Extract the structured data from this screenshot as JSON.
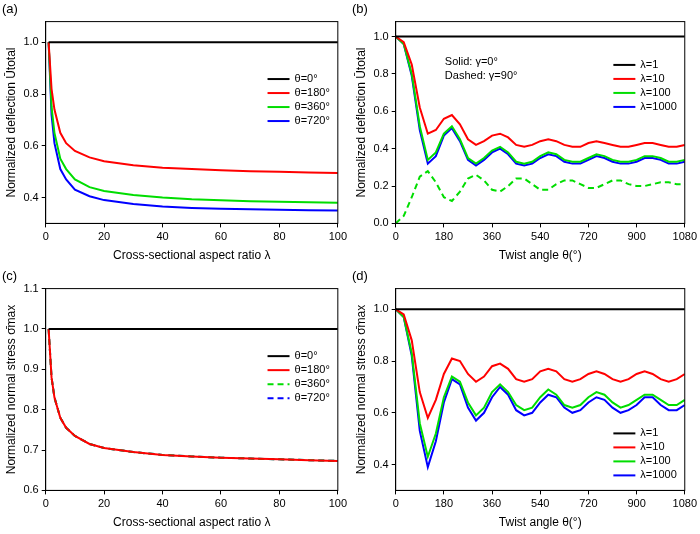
{
  "chart_data": [
    {
      "type": "line",
      "title": "(a)",
      "x_label": "Cross-sectional aspect ratio λ",
      "y_label": "Normalized deflection Ūtotal",
      "x": [
        1,
        2,
        3,
        5,
        7,
        10,
        15,
        20,
        30,
        40,
        50,
        60,
        70,
        80,
        90,
        100
      ],
      "xlim": [
        0,
        100
      ],
      "xticks": [
        0,
        20,
        40,
        60,
        80,
        100
      ],
      "ylim": [
        0.3,
        1.08
      ],
      "yticks": [
        0.4,
        0.6,
        0.8,
        {
          "value": 1,
          "label": "1.0"
        }
      ],
      "grid": false,
      "legend": "right",
      "series": [
        {
          "name": "θ=0°",
          "color": "#000000",
          "line_style": "solid",
          "values": [
            1,
            1,
            1,
            1,
            1,
            1,
            1,
            1,
            1,
            1,
            1,
            1,
            1,
            1,
            1,
            1
          ]
        },
        {
          "name": "θ=180°",
          "color": "#ff0000",
          "line_style": "solid",
          "values": [
            1,
            0.82,
            0.74,
            0.65,
            0.61,
            0.58,
            0.555,
            0.54,
            0.525,
            0.515,
            0.51,
            0.505,
            0.502,
            0.5,
            0.497,
            0.495
          ]
        },
        {
          "name": "θ=360°",
          "color": "#00dd00",
          "line_style": "solid",
          "values": [
            1,
            0.75,
            0.65,
            0.55,
            0.51,
            0.47,
            0.44,
            0.425,
            0.41,
            0.4,
            0.393,
            0.389,
            0.386,
            0.384,
            0.382,
            0.38
          ]
        },
        {
          "name": "θ=720°",
          "color": "#0000ff",
          "line_style": "solid",
          "values": [
            1,
            0.72,
            0.61,
            0.51,
            0.47,
            0.43,
            0.405,
            0.39,
            0.375,
            0.365,
            0.36,
            0.357,
            0.355,
            0.353,
            0.351,
            0.35
          ]
        }
      ]
    },
    {
      "type": "line",
      "title": "(b)",
      "x_label": "Twist angle θ(°)",
      "y_label": "Normalized deflection Ūtotal",
      "annotations": [
        "Solid: γ=0°",
        "Dashed: γ=90°"
      ],
      "x": [
        0,
        30,
        60,
        90,
        120,
        150,
        180,
        210,
        240,
        270,
        300,
        330,
        360,
        390,
        420,
        450,
        480,
        510,
        540,
        570,
        600,
        630,
        660,
        690,
        720,
        750,
        780,
        810,
        840,
        870,
        900,
        930,
        960,
        990,
        1020,
        1050,
        1080
      ],
      "xlim": [
        0,
        1080
      ],
      "xticks": [
        0,
        180,
        360,
        540,
        720,
        900,
        1080
      ],
      "ylim": [
        0,
        1.08
      ],
      "yticks": [
        {
          "value": 0,
          "label": "0.0"
        },
        0.2,
        0.4,
        0.6,
        0.8,
        {
          "value": 1,
          "label": "1.0"
        }
      ],
      "grid": false,
      "legend": "right",
      "series": [
        {
          "name": "λ=1",
          "color": "#000000",
          "line_style": "solid",
          "values": [
            1,
            1,
            1,
            1,
            1,
            1,
            1,
            1,
            1,
            1,
            1,
            1,
            1,
            1,
            1,
            1,
            1,
            1,
            1,
            1,
            1,
            1,
            1,
            1,
            1,
            1,
            1,
            1,
            1,
            1,
            1,
            1,
            1,
            1,
            1,
            1,
            1
          ]
        },
        {
          "name": "λ=10",
          "color": "#ff0000",
          "line_style": "solid",
          "values": [
            1,
            0.97,
            0.85,
            0.62,
            0.48,
            0.5,
            0.56,
            0.58,
            0.53,
            0.45,
            0.42,
            0.44,
            0.47,
            0.48,
            0.46,
            0.42,
            0.41,
            0.42,
            0.44,
            0.45,
            0.44,
            0.42,
            0.41,
            0.41,
            0.43,
            0.44,
            0.43,
            0.42,
            0.41,
            0.41,
            0.42,
            0.43,
            0.43,
            0.42,
            0.41,
            0.41,
            0.42
          ]
        },
        {
          "name": "λ=100",
          "color": "#00dd00",
          "line_style": "solid",
          "values": [
            1,
            0.96,
            0.8,
            0.52,
            0.34,
            0.38,
            0.48,
            0.52,
            0.45,
            0.35,
            0.32,
            0.35,
            0.39,
            0.41,
            0.38,
            0.33,
            0.32,
            0.33,
            0.36,
            0.38,
            0.37,
            0.34,
            0.33,
            0.33,
            0.35,
            0.37,
            0.36,
            0.34,
            0.33,
            0.33,
            0.34,
            0.36,
            0.36,
            0.35,
            0.33,
            0.33,
            0.34
          ]
        },
        {
          "name": "λ=1000",
          "color": "#0000ff",
          "line_style": "solid",
          "values": [
            1,
            0.96,
            0.79,
            0.5,
            0.32,
            0.36,
            0.47,
            0.51,
            0.44,
            0.34,
            0.31,
            0.34,
            0.38,
            0.4,
            0.37,
            0.32,
            0.31,
            0.32,
            0.35,
            0.37,
            0.36,
            0.33,
            0.32,
            0.32,
            0.34,
            0.36,
            0.35,
            0.33,
            0.32,
            0.32,
            0.33,
            0.35,
            0.35,
            0.34,
            0.32,
            0.32,
            0.33
          ]
        },
        {
          "color": "#00dd00",
          "line_style": "dashed",
          "values": [
            0,
            0.04,
            0.14,
            0.25,
            0.28,
            0.22,
            0.14,
            0.12,
            0.17,
            0.24,
            0.26,
            0.23,
            0.18,
            0.17,
            0.2,
            0.24,
            0.24,
            0.21,
            0.18,
            0.18,
            0.21,
            0.23,
            0.23,
            0.21,
            0.19,
            0.19,
            0.21,
            0.23,
            0.23,
            0.21,
            0.2,
            0.2,
            0.21,
            0.22,
            0.22,
            0.21,
            0.21
          ]
        }
      ]
    },
    {
      "type": "line",
      "title": "(c)",
      "x_label": "Cross-sectional aspect ratio λ",
      "y_label": "Normalized normal stress σ̄max",
      "x": [
        1,
        2,
        3,
        5,
        7,
        10,
        15,
        20,
        30,
        40,
        50,
        60,
        70,
        80,
        90,
        100
      ],
      "xlim": [
        0,
        100
      ],
      "xticks": [
        0,
        20,
        40,
        60,
        80,
        100
      ],
      "ylim": [
        0.6,
        1.1
      ],
      "yticks": [
        0.6,
        0.7,
        0.8,
        0.9,
        {
          "value": 1,
          "label": "1.0"
        },
        1.1
      ],
      "grid": false,
      "legend": "right",
      "series": [
        {
          "name": "θ=0°",
          "color": "#000000",
          "line_style": "solid",
          "values": [
            1,
            1,
            1,
            1,
            1,
            1,
            1,
            1,
            1,
            1,
            1,
            1,
            1,
            1,
            1,
            1
          ]
        },
        {
          "name": "θ=180°",
          "color": "#ff0000",
          "line_style": "solid",
          "values": [
            1,
            0.88,
            0.83,
            0.78,
            0.755,
            0.735,
            0.715,
            0.705,
            0.695,
            0.688,
            0.684,
            0.681,
            0.679,
            0.677,
            0.675,
            0.673
          ]
        },
        {
          "name": "θ=360°",
          "color": "#00dd00",
          "line_style": "dashed",
          "values": [
            1,
            0.88,
            0.83,
            0.78,
            0.755,
            0.735,
            0.715,
            0.705,
            0.695,
            0.688,
            0.684,
            0.681,
            0.679,
            0.677,
            0.675,
            0.673
          ]
        },
        {
          "name": "θ=720°",
          "color": "#0000ff",
          "line_style": "dashed",
          "values": [
            1,
            0.88,
            0.83,
            0.78,
            0.755,
            0.735,
            0.715,
            0.705,
            0.695,
            0.688,
            0.684,
            0.681,
            0.679,
            0.677,
            0.675,
            0.673
          ]
        }
      ]
    },
    {
      "type": "line",
      "title": "(d)",
      "x_label": "Twist angle θ(°)",
      "y_label": "Normalized normal stress σ̄max",
      "x": [
        0,
        30,
        60,
        90,
        120,
        150,
        180,
        210,
        240,
        270,
        300,
        330,
        360,
        390,
        420,
        450,
        480,
        510,
        540,
        570,
        600,
        630,
        660,
        690,
        720,
        750,
        780,
        810,
        840,
        870,
        900,
        930,
        960,
        990,
        1020,
        1050,
        1080
      ],
      "xlim": [
        0,
        1080
      ],
      "xticks": [
        0,
        180,
        360,
        540,
        720,
        900,
        1080
      ],
      "ylim": [
        0.3,
        1.08
      ],
      "yticks": [
        0.4,
        0.6,
        0.8,
        {
          "value": 1,
          "label": "1.0"
        }
      ],
      "grid": false,
      "legend": "lower right",
      "series": [
        {
          "name": "λ=1",
          "color": "#000000",
          "line_style": "solid",
          "values": [
            1,
            1,
            1,
            1,
            1,
            1,
            1,
            1,
            1,
            1,
            1,
            1,
            1,
            1,
            1,
            1,
            1,
            1,
            1,
            1,
            1,
            1,
            1,
            1,
            1,
            1,
            1,
            1,
            1,
            1,
            1,
            1,
            1,
            1,
            1,
            1,
            1
          ]
        },
        {
          "name": "λ=10",
          "color": "#ff0000",
          "line_style": "solid",
          "values": [
            1,
            0.98,
            0.88,
            0.68,
            0.58,
            0.65,
            0.75,
            0.81,
            0.8,
            0.75,
            0.72,
            0.74,
            0.78,
            0.79,
            0.77,
            0.73,
            0.72,
            0.73,
            0.76,
            0.77,
            0.76,
            0.73,
            0.72,
            0.73,
            0.75,
            0.76,
            0.75,
            0.73,
            0.72,
            0.73,
            0.75,
            0.76,
            0.75,
            0.73,
            0.72,
            0.73,
            0.75
          ]
        },
        {
          "name": "λ=100",
          "color": "#00dd00",
          "line_style": "solid",
          "values": [
            1,
            0.97,
            0.83,
            0.56,
            0.43,
            0.52,
            0.66,
            0.74,
            0.72,
            0.64,
            0.59,
            0.62,
            0.68,
            0.71,
            0.68,
            0.63,
            0.61,
            0.62,
            0.66,
            0.69,
            0.67,
            0.63,
            0.62,
            0.63,
            0.66,
            0.68,
            0.67,
            0.64,
            0.62,
            0.63,
            0.65,
            0.67,
            0.67,
            0.65,
            0.63,
            0.63,
            0.65
          ]
        },
        {
          "name": "λ=1000",
          "color": "#0000ff",
          "line_style": "solid",
          "values": [
            1,
            0.97,
            0.82,
            0.53,
            0.39,
            0.49,
            0.64,
            0.73,
            0.71,
            0.62,
            0.57,
            0.6,
            0.66,
            0.7,
            0.67,
            0.61,
            0.59,
            0.6,
            0.64,
            0.67,
            0.66,
            0.62,
            0.6,
            0.61,
            0.64,
            0.66,
            0.65,
            0.62,
            0.6,
            0.61,
            0.63,
            0.66,
            0.66,
            0.63,
            0.61,
            0.61,
            0.63
          ]
        }
      ]
    }
  ]
}
